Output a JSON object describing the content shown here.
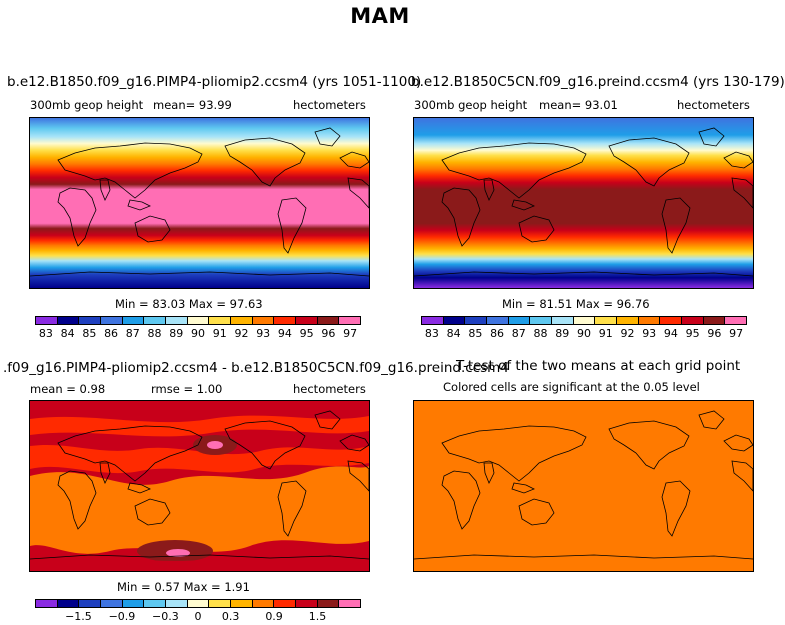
{
  "figure_title": "MAM",
  "panels": [
    {
      "title": "b.e12.B1850.f09_g16.PIMP4-pliomip2.ccsm4 (yrs 1051-1100)",
      "left_label": "300mb  geop  height",
      "mean_label": "mean=   93.99",
      "units": "hectometers",
      "minmax": "Min =   83.03  Max =   97.63",
      "colorbar_labels": [
        "83",
        "84",
        "85",
        "86",
        "87",
        "88",
        "89",
        "90",
        "91",
        "92",
        "93",
        "94",
        "95",
        "96",
        "97"
      ]
    },
    {
      "title": "b.e12.B1850C5CN.f09_g16.preind.ccsm4 (yrs 130-179)",
      "left_label": "300mb  geop  height",
      "mean_label": "mean=   93.01",
      "units": "hectometers",
      "minmax": "Min =   81.51  Max =   96.76",
      "colorbar_labels": [
        "83",
        "84",
        "85",
        "86",
        "87",
        "88",
        "89",
        "90",
        "91",
        "92",
        "93",
        "94",
        "95",
        "96",
        "97"
      ]
    },
    {
      "title": ".f09_g16.PIMP4-pliomip2.ccsm4 - b.e12.B1850C5CN.f09_g16.preind.ccsm4",
      "left_label": "mean =    0.98",
      "mean_label": "rmse =    1.00",
      "units": "hectometers",
      "minmax": "Min =   0.57  Max =   1.91",
      "colorbar_labels": [
        "−1.5",
        "−0.9",
        "−0.3",
        "0",
        "0.3",
        "0.9",
        "1.5"
      ]
    },
    {
      "title": "T-test of the two means at each grid point",
      "subtitle": "Colored cells are significant at the 0.05 level"
    }
  ],
  "colors": {
    "abs_palette": [
      "#8a2be2",
      "#00008b",
      "#1e3fbf",
      "#3f74e0",
      "#1f9ee8",
      "#5ec8f0",
      "#a8e4f8",
      "#fffbd0",
      "#ffe04a",
      "#ffb400",
      "#ff7a00",
      "#ff2a00",
      "#c8001a",
      "#8b1a1a",
      "#ff6eb4"
    ],
    "diff_palette": [
      "#8a2be2",
      "#00008b",
      "#1e3fbf",
      "#3f74e0",
      "#1f9ee8",
      "#5ec8f0",
      "#a8e4f8",
      "#fffbd0",
      "#ffe04a",
      "#ffb400",
      "#ff7a00",
      "#ff2a00",
      "#c8001a",
      "#8b1a1a",
      "#ff6eb4"
    ],
    "ttest_fill": "#ff7a00"
  }
}
